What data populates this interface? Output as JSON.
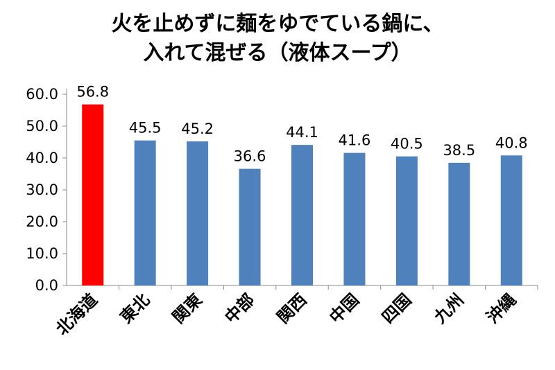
{
  "chart_data": {
    "type": "bar",
    "title_lines": [
      "火を止めずに麺をゆでている鍋に、",
      "入れて混ぜる（液体スープ）"
    ],
    "categories": [
      "北海道",
      "東北",
      "関東",
      "中部",
      "関西",
      "中国",
      "四国",
      "九州",
      "沖縄"
    ],
    "values": [
      56.8,
      45.5,
      45.2,
      36.6,
      44.1,
      41.6,
      40.5,
      38.5,
      40.8
    ],
    "value_labels": [
      "56.8",
      "45.5",
      "45.2",
      "36.6",
      "44.1",
      "41.6",
      "40.5",
      "38.5",
      "40.8"
    ],
    "bar_colors": [
      "#ff0000",
      "#4f81bd",
      "#4f81bd",
      "#4f81bd",
      "#4f81bd",
      "#4f81bd",
      "#4f81bd",
      "#4f81bd",
      "#4f81bd"
    ],
    "y_ticks": [
      0,
      10,
      20,
      30,
      40,
      50,
      60
    ],
    "y_tick_labels": [
      "0.0",
      "10.0",
      "20.0",
      "30.0",
      "40.0",
      "50.0",
      "60.0"
    ],
    "ylim": [
      0,
      60
    ],
    "xlabel": "",
    "ylabel": "",
    "grid": false,
    "legend": "none"
  }
}
